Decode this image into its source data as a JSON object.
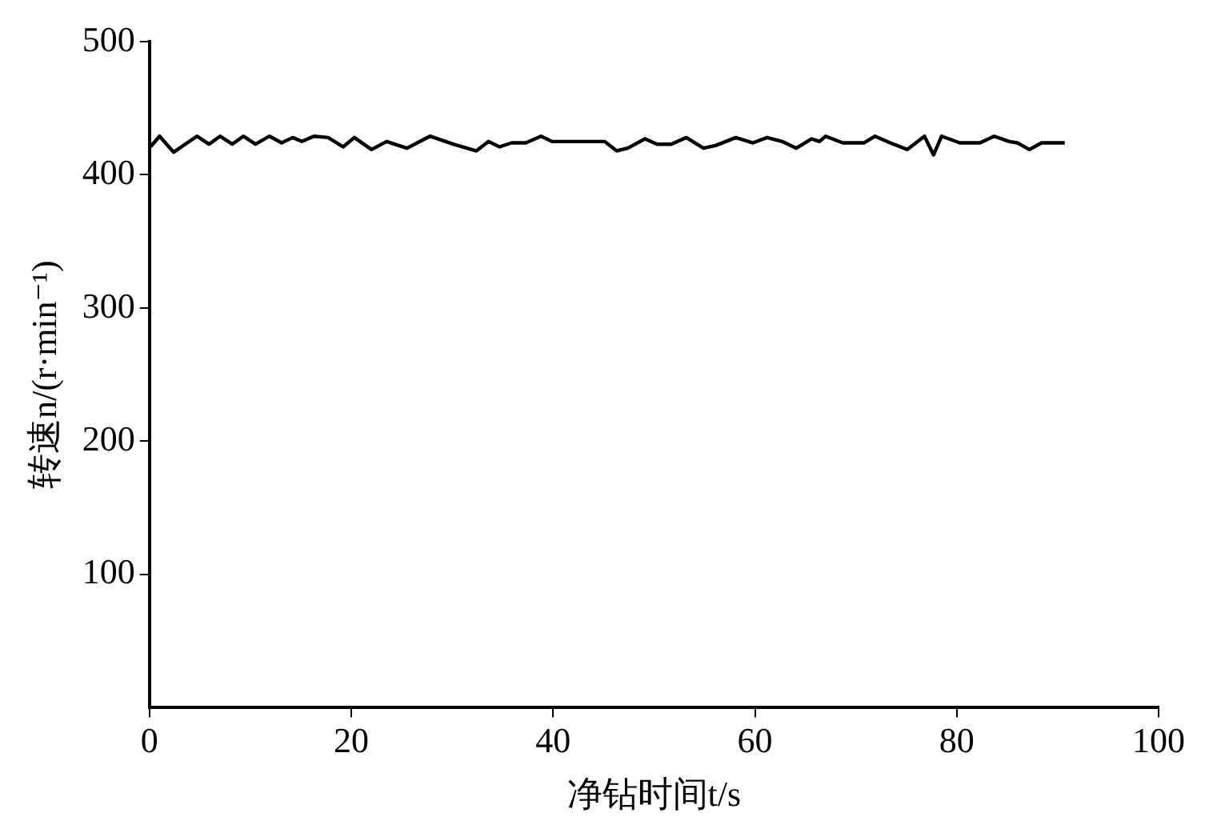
{
  "chart_data": {
    "type": "line",
    "xlabel": "净钻时间t/s",
    "ylabel": "转速n/(r·min⁻¹)",
    "xlim": [
      0,
      100
    ],
    "xticks": [
      0,
      20,
      40,
      60,
      80,
      100
    ],
    "ylim": [
      0,
      500
    ],
    "yticks": [
      100,
      200,
      300,
      400,
      500
    ],
    "grid": false,
    "legend": false,
    "marker": "none",
    "line_style": "solid",
    "series": [
      {
        "color": "#000000",
        "x": [
          0.1,
          1.0,
          2.4,
          4.7,
          5.9,
          7.0,
          8.2,
          9.3,
          10.5,
          11.9,
          13.1,
          14.2,
          15.1,
          16.3,
          17.7,
          19.2,
          20.3,
          22.0,
          23.5,
          25.5,
          27.8,
          30.1,
          32.4,
          33.6,
          34.7,
          35.9,
          37.3,
          38.8,
          39.9,
          45.1,
          46.3,
          47.4,
          49.1,
          50.3,
          51.7,
          53.2,
          54.9,
          56.1,
          58.1,
          59.8,
          61.2,
          62.7,
          64.1,
          65.6,
          66.4,
          67.0,
          68.7,
          70.8,
          71.9,
          73.4,
          75.1,
          76.8,
          77.7,
          78.5,
          80.3,
          82.3,
          83.7,
          85.2,
          86.0,
          87.2,
          88.4,
          90.7
        ],
        "values": [
          421,
          429,
          417,
          429,
          423,
          429,
          423,
          429,
          423,
          429,
          424,
          428,
          425,
          429,
          428,
          421,
          428,
          419,
          425,
          420,
          429,
          423,
          418,
          425,
          421,
          424,
          424,
          429,
          425,
          425,
          418,
          420,
          427,
          423,
          423,
          428,
          420,
          422,
          428,
          424,
          428,
          425,
          420,
          427,
          425,
          429,
          424,
          424,
          429,
          424,
          419,
          429,
          415,
          429,
          424,
          424,
          429,
          425,
          424,
          419,
          424,
          424
        ]
      }
    ]
  }
}
